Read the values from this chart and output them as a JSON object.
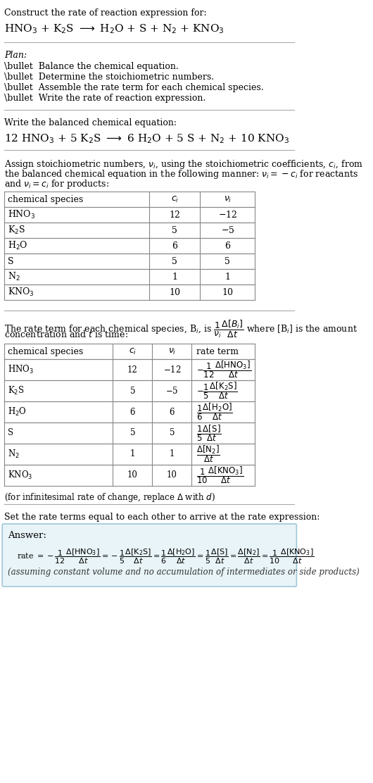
{
  "bg_color": "#ffffff",
  "text_color": "#000000",
  "title_line1": "Construct the rate of reaction expression for:",
  "reaction_unbalanced": "HNO$_3$ + K$_2$S $\\longrightarrow$ H$_2$O + S + N$_2$ + KNO$_3$",
  "plan_header": "Plan:",
  "plan_items": [
    "\\bullet  Balance the chemical equation.",
    "\\bullet  Determine the stoichiometric numbers.",
    "\\bullet  Assemble the rate term for each chemical species.",
    "\\bullet  Write the rate of reaction expression."
  ],
  "balanced_header": "Write the balanced chemical equation:",
  "balanced_eq": "12 HNO$_3$ + 5 K$_2$S $\\longrightarrow$ 6 H$_2$O + 5 S + N$_2$ + 10 KNO$_3$",
  "stoich_intro": "Assign stoichiometric numbers, $\\nu_i$, using the stoichiometric coefficients, $c_i$, from\nthe balanced chemical equation in the following manner: $\\nu_i = -c_i$ for reactants\nand $\\nu_i = c_i$ for products:",
  "table1_headers": [
    "chemical species",
    "$c_i$",
    "$\\nu_i$"
  ],
  "table1_rows": [
    [
      "HNO$_3$",
      "12",
      "$-$12"
    ],
    [
      "K$_2$S",
      "5",
      "$-$5"
    ],
    [
      "H$_2$O",
      "6",
      "6"
    ],
    [
      "S",
      "5",
      "5"
    ],
    [
      "N$_2$",
      "1",
      "1"
    ],
    [
      "KNO$_3$",
      "10",
      "10"
    ]
  ],
  "rate_term_intro": "The rate term for each chemical species, B$_i$, is $\\dfrac{1}{\\nu_i}\\dfrac{\\Delta[B_i]}{\\Delta t}$ where [B$_i$] is the amount\nconcentration and $t$ is time:",
  "table2_headers": [
    "chemical species",
    "$c_i$",
    "$\\nu_i$",
    "rate term"
  ],
  "table2_rows": [
    [
      "HNO$_3$",
      "12",
      "$-$12",
      "$-\\dfrac{1}{12}\\dfrac{\\Delta[\\mathrm{HNO_3}]}{\\Delta t}$"
    ],
    [
      "K$_2$S",
      "5",
      "$-$5",
      "$-\\dfrac{1}{5}\\dfrac{\\Delta[\\mathrm{K_2S}]}{\\Delta t}$"
    ],
    [
      "H$_2$O",
      "6",
      "6",
      "$\\dfrac{1}{6}\\dfrac{\\Delta[\\mathrm{H_2O}]}{\\Delta t}$"
    ],
    [
      "S",
      "5",
      "5",
      "$\\dfrac{1}{5}\\dfrac{\\Delta[\\mathrm{S}]}{\\Delta t}$"
    ],
    [
      "N$_2$",
      "1",
      "1",
      "$\\dfrac{\\Delta[\\mathrm{N_2}]}{\\Delta t}$"
    ],
    [
      "KNO$_3$",
      "10",
      "10",
      "$\\dfrac{1}{10}\\dfrac{\\Delta[\\mathrm{KNO_3}]}{\\Delta t}$"
    ]
  ],
  "infinitesimal_note": "(for infinitesimal rate of change, replace $\\Delta$ with $d$)",
  "set_equal_text": "Set the rate terms equal to each other to arrive at the rate expression:",
  "answer_label": "Answer:",
  "answer_rate": "rate $= -\\dfrac{1}{12}\\dfrac{\\Delta[\\mathrm{HNO_3}]}{\\Delta t} = -\\dfrac{1}{5}\\dfrac{\\Delta[\\mathrm{K_2S}]}{\\Delta t} = \\dfrac{1}{6}\\dfrac{\\Delta[\\mathrm{H_2O}]}{\\Delta t} = \\dfrac{1}{5}\\dfrac{\\Delta[\\mathrm{S}]}{\\Delta t} = \\dfrac{\\Delta[\\mathrm{N_2}]}{\\Delta t} = \\dfrac{1}{10}\\dfrac{\\Delta[\\mathrm{KNO_3}]}{\\Delta t}$",
  "answer_note": "(assuming constant volume and no accumulation of intermediates or side products)",
  "answer_box_color": "#e8f4f8",
  "answer_box_border": "#a0c8d8"
}
